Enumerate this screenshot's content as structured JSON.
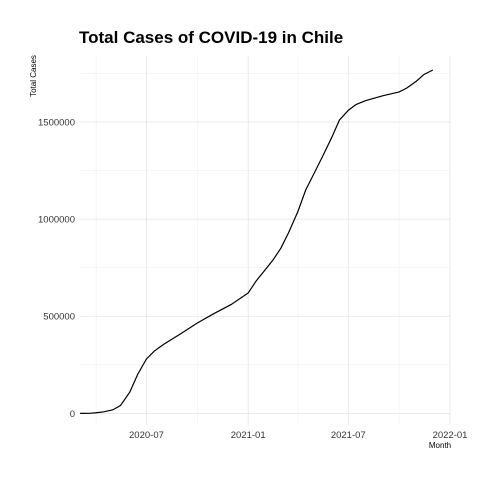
{
  "chart_data": {
    "type": "line",
    "title": "Total Cases of COVID-19 in Chile",
    "xlabel": "Month",
    "ylabel": "Total Cases",
    "x_type": "date",
    "xlim": [
      "2020-03-01",
      "2022-01-01"
    ],
    "ylim": [
      -60000,
      1840000
    ],
    "x_ticks": [
      {
        "date": "2020-07-01",
        "label": "2020-07"
      },
      {
        "date": "2021-01-01",
        "label": "2021-01"
      },
      {
        "date": "2021-07-01",
        "label": "2021-07"
      },
      {
        "date": "2022-01-01",
        "label": "2022-01"
      }
    ],
    "y_ticks": [
      {
        "value": 0,
        "label": "0"
      },
      {
        "value": 500000,
        "label": "500000"
      },
      {
        "value": 1000000,
        "label": "1000000"
      },
      {
        "value": 1500000,
        "label": "1500000"
      }
    ],
    "grid": true,
    "series": [
      {
        "color": "#000000",
        "points": [
          {
            "x": "2020-03-03",
            "y": 0
          },
          {
            "x": "2020-03-20",
            "y": 300
          },
          {
            "x": "2020-04-01",
            "y": 3000
          },
          {
            "x": "2020-04-15",
            "y": 8000
          },
          {
            "x": "2020-05-01",
            "y": 18000
          },
          {
            "x": "2020-05-15",
            "y": 40000
          },
          {
            "x": "2020-06-01",
            "y": 110000
          },
          {
            "x": "2020-06-15",
            "y": 200000
          },
          {
            "x": "2020-07-01",
            "y": 280000
          },
          {
            "x": "2020-07-15",
            "y": 320000
          },
          {
            "x": "2020-08-01",
            "y": 355000
          },
          {
            "x": "2020-09-01",
            "y": 410000
          },
          {
            "x": "2020-10-01",
            "y": 465000
          },
          {
            "x": "2020-11-01",
            "y": 515000
          },
          {
            "x": "2020-12-01",
            "y": 560000
          },
          {
            "x": "2021-01-01",
            "y": 620000
          },
          {
            "x": "2021-01-15",
            "y": 680000
          },
          {
            "x": "2021-02-01",
            "y": 740000
          },
          {
            "x": "2021-02-15",
            "y": 790000
          },
          {
            "x": "2021-03-01",
            "y": 850000
          },
          {
            "x": "2021-03-15",
            "y": 930000
          },
          {
            "x": "2021-04-01",
            "y": 1040000
          },
          {
            "x": "2021-04-15",
            "y": 1150000
          },
          {
            "x": "2021-05-01",
            "y": 1240000
          },
          {
            "x": "2021-05-15",
            "y": 1320000
          },
          {
            "x": "2021-06-01",
            "y": 1420000
          },
          {
            "x": "2021-06-15",
            "y": 1510000
          },
          {
            "x": "2021-07-01",
            "y": 1560000
          },
          {
            "x": "2021-07-15",
            "y": 1590000
          },
          {
            "x": "2021-08-01",
            "y": 1610000
          },
          {
            "x": "2021-09-01",
            "y": 1635000
          },
          {
            "x": "2021-10-01",
            "y": 1655000
          },
          {
            "x": "2021-10-15",
            "y": 1675000
          },
          {
            "x": "2021-11-01",
            "y": 1710000
          },
          {
            "x": "2021-11-15",
            "y": 1745000
          },
          {
            "x": "2021-12-01",
            "y": 1768000
          }
        ]
      }
    ]
  }
}
